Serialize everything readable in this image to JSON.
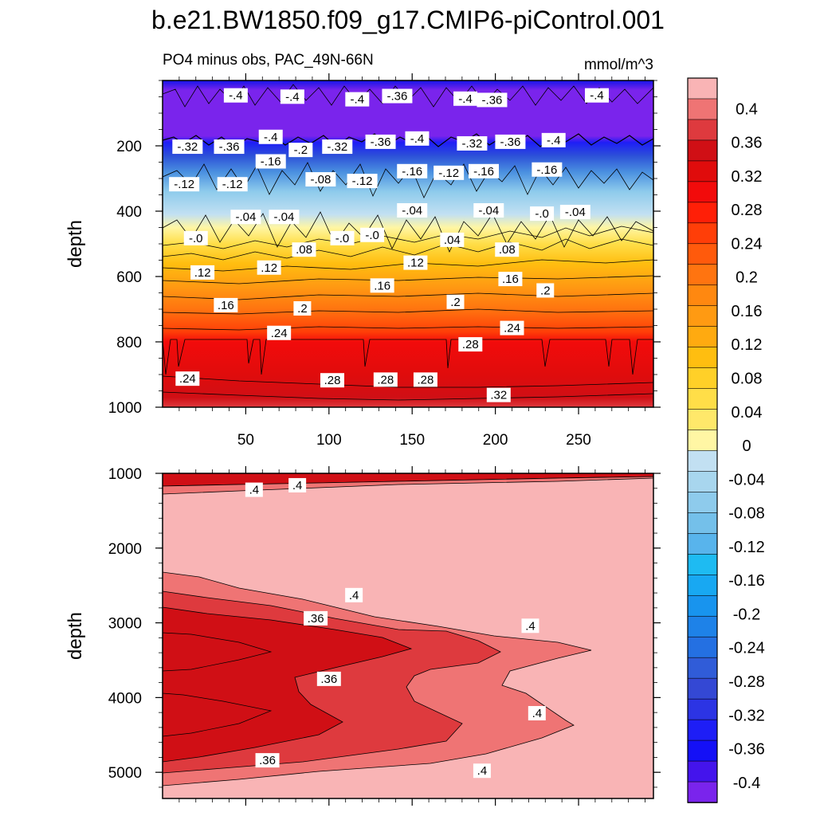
{
  "title": "b.e21.BW1850.f09_g17.CMIP6-piControl.001",
  "subtitle_left": "PO4 minus obs, PAC_49N-66N",
  "subtitle_right": "mmol/m^3",
  "chart_data": [
    {
      "type": "contour",
      "panel": "upper",
      "ylabel": "depth",
      "ylim": [
        1000,
        0
      ],
      "xlim": [
        0,
        295
      ],
      "yticks": [
        "200",
        "400",
        "600",
        "800",
        "1000"
      ],
      "xticks": [
        "50",
        "100",
        "150",
        "200",
        "250"
      ],
      "grid": false,
      "contour_labels": [
        {
          "x": 44,
          "y": 48,
          "text": "-.4"
        },
        {
          "x": 78,
          "y": 52,
          "text": "-.4"
        },
        {
          "x": 117,
          "y": 60,
          "text": "-.4"
        },
        {
          "x": 141,
          "y": 50,
          "text": "-.36"
        },
        {
          "x": 182,
          "y": 58,
          "text": "-.4"
        },
        {
          "x": 198,
          "y": 62,
          "text": "-.36"
        },
        {
          "x": 261,
          "y": 48,
          "text": "-.4"
        },
        {
          "x": 15,
          "y": 205,
          "text": "-.32"
        },
        {
          "x": 40,
          "y": 205,
          "text": "-.36"
        },
        {
          "x": 65,
          "y": 175,
          "text": "-.4"
        },
        {
          "x": 83,
          "y": 215,
          "text": "-.2"
        },
        {
          "x": 105,
          "y": 205,
          "text": "-.32"
        },
        {
          "x": 131,
          "y": 190,
          "text": "-.36"
        },
        {
          "x": 153,
          "y": 180,
          "text": "-.4"
        },
        {
          "x": 186,
          "y": 195,
          "text": "-.32"
        },
        {
          "x": 209,
          "y": 190,
          "text": "-.36"
        },
        {
          "x": 235,
          "y": 185,
          "text": "-.4"
        },
        {
          "x": 13,
          "y": 320,
          "text": "-.12"
        },
        {
          "x": 42,
          "y": 320,
          "text": "-.12"
        },
        {
          "x": 65,
          "y": 250,
          "text": "-.16"
        },
        {
          "x": 95,
          "y": 305,
          "text": "-.08"
        },
        {
          "x": 120,
          "y": 310,
          "text": "-.12"
        },
        {
          "x": 150,
          "y": 280,
          "text": "-.16"
        },
        {
          "x": 172,
          "y": 285,
          "text": "-.12"
        },
        {
          "x": 193,
          "y": 280,
          "text": "-.16"
        },
        {
          "x": 231,
          "y": 275,
          "text": "-.16"
        },
        {
          "x": 50,
          "y": 420,
          "text": "-.04"
        },
        {
          "x": 73,
          "y": 420,
          "text": "-.04"
        },
        {
          "x": 150,
          "y": 400,
          "text": "-.04"
        },
        {
          "x": 196,
          "y": 400,
          "text": "-.04"
        },
        {
          "x": 228,
          "y": 410,
          "text": "-.0"
        },
        {
          "x": 248,
          "y": 405,
          "text": "-.04"
        },
        {
          "x": 20,
          "y": 485,
          "text": "-.0"
        },
        {
          "x": 108,
          "y": 485,
          "text": "-.0"
        },
        {
          "x": 126,
          "y": 475,
          "text": "-.0"
        },
        {
          "x": 174,
          "y": 490,
          "text": ".04"
        },
        {
          "x": 207,
          "y": 520,
          "text": ".08"
        },
        {
          "x": 85,
          "y": 520,
          "text": ".08"
        },
        {
          "x": 24,
          "y": 590,
          "text": ".12"
        },
        {
          "x": 64,
          "y": 575,
          "text": ".12"
        },
        {
          "x": 152,
          "y": 560,
          "text": ".12"
        },
        {
          "x": 132,
          "y": 630,
          "text": ".16"
        },
        {
          "x": 209,
          "y": 610,
          "text": ".16"
        },
        {
          "x": 230,
          "y": 645,
          "text": ".2"
        },
        {
          "x": 38,
          "y": 690,
          "text": ".16"
        },
        {
          "x": 84,
          "y": 700,
          "text": ".2"
        },
        {
          "x": 176,
          "y": 680,
          "text": ".2"
        },
        {
          "x": 70,
          "y": 775,
          "text": ".24"
        },
        {
          "x": 210,
          "y": 760,
          "text": ".24"
        },
        {
          "x": 185,
          "y": 810,
          "text": ".28"
        },
        {
          "x": 15,
          "y": 915,
          "text": ".24"
        },
        {
          "x": 102,
          "y": 920,
          "text": ".28"
        },
        {
          "x": 134,
          "y": 918,
          "text": ".28"
        },
        {
          "x": 158,
          "y": 918,
          "text": ".28"
        },
        {
          "x": 202,
          "y": 965,
          "text": ".32"
        }
      ]
    },
    {
      "type": "contour",
      "panel": "lower",
      "ylabel": "depth",
      "ylim": [
        5350,
        1000
      ],
      "xlim": [
        0,
        295
      ],
      "yticks": [
        "1000",
        "2000",
        "3000",
        "4000",
        "5000"
      ],
      "grid": false,
      "contour_labels": [
        {
          "x": 55,
          "y": 1230,
          "text": ".4"
        },
        {
          "x": 81,
          "y": 1170,
          "text": ".4"
        },
        {
          "x": 115,
          "y": 2640,
          "text": ".4"
        },
        {
          "x": 92,
          "y": 2950,
          "text": ".36"
        },
        {
          "x": 221,
          "y": 3050,
          "text": ".4"
        },
        {
          "x": 100,
          "y": 3760,
          "text": ".36"
        },
        {
          "x": 225,
          "y": 4220,
          "text": ".4"
        },
        {
          "x": 63,
          "y": 4850,
          "text": ".36"
        },
        {
          "x": 192,
          "y": 4990,
          "text": ".4"
        }
      ]
    }
  ],
  "colorbar": {
    "levels": [
      "0.4",
      "0.36",
      "0.32",
      "0.28",
      "0.24",
      "0.2",
      "0.16",
      "0.12",
      "0.08",
      "0.04",
      "0",
      "-0.04",
      "-0.08",
      "-0.12",
      "-0.16",
      "-0.2",
      "-0.24",
      "-0.28",
      "-0.32",
      "-0.36",
      "-0.4"
    ],
    "colors": [
      "#f9b4b5",
      "#ef7474",
      "#de3a3e",
      "#d00f15",
      "#e00c0c",
      "#f20b0b",
      "#ff1f07",
      "#ff3e08",
      "#ff5a0c",
      "#ff7410",
      "#ff8810",
      "#ff9a12",
      "#ffaa10",
      "#ffbe10",
      "#ffd028",
      "#ffde48",
      "#ffe86a",
      "#fff6a4",
      "#c2e0f2",
      "#a8d6ee",
      "#8ecbec",
      "#74c0ea",
      "#58b4ec",
      "#1ebbf2",
      "#18a8f2",
      "#1894ee",
      "#1e82e8",
      "#2470e2",
      "#305cd8",
      "#3448d4",
      "#2c34e4",
      "#1e1ef6",
      "#1410f6",
      "#4414ec",
      "#7a24ec"
    ]
  }
}
